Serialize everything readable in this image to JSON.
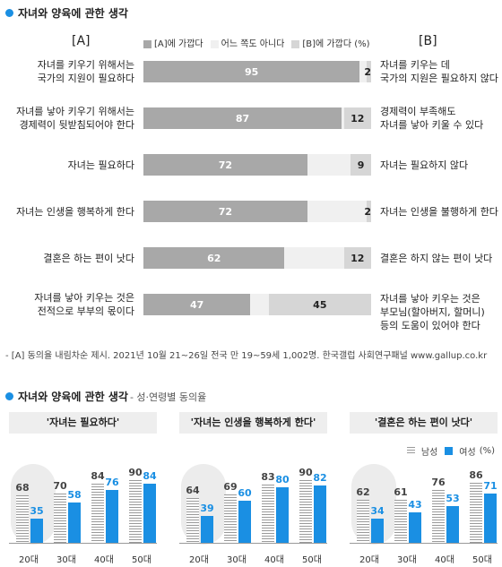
{
  "title1": "자녀와 양육에 관한 생각",
  "colA": "[A]",
  "colB": "[B]",
  "legend1": {
    "a": "[A]에 가깝다",
    "n": "어느 쪽도 아니다",
    "b": "[B]에 가깝다",
    "unit": "(%)"
  },
  "colors": {
    "a": "#a8a8a8",
    "n": "#f0f0f0",
    "b": "#d6d6d6",
    "male": "#9a9a9a",
    "female": "#1a8fe3",
    "accent": "#1a8fe3"
  },
  "rows": [
    {
      "a_text": [
        "자녀를 키우기 위해서는",
        "국가의 지원이 필요하다"
      ],
      "b_text": [
        "자녀를 키우는 데",
        "국가의 지원은 필요하지 않다"
      ],
      "a": 95,
      "n": 3,
      "b": 2,
      "a_label": "95",
      "b_label": "2"
    },
    {
      "a_text": [
        "자녀를 낳아 키우기 위해서는",
        "경제력이 뒷받침되어야 한다"
      ],
      "b_text": [
        "경제력이 부족해도",
        "자녀를 낳아 키울 수 있다"
      ],
      "a": 87,
      "n": 1,
      "b": 12,
      "a_label": "87",
      "b_label": "12"
    },
    {
      "a_text": [
        "자녀는 필요하다"
      ],
      "b_text": [
        "자녀는 필요하지 않다"
      ],
      "a": 72,
      "n": 19,
      "b": 9,
      "a_label": "72",
      "b_label": "9"
    },
    {
      "a_text": [
        "자녀는 인생을 행복하게 한다"
      ],
      "b_text": [
        "자녀는 인생을 불행하게 한다"
      ],
      "a": 72,
      "n": 26,
      "b": 2,
      "a_label": "72",
      "b_label": "2"
    },
    {
      "a_text": [
        "결혼은 하는 편이 낫다"
      ],
      "b_text": [
        "결혼은 하지 않는 편이 낫다"
      ],
      "a": 62,
      "n": 26,
      "b": 12,
      "a_label": "62",
      "b_label": "12"
    },
    {
      "a_text": [
        "자녀를 낳아 키우는 것은",
        "전적으로 부부의 몫이다"
      ],
      "b_text": [
        "자녀를 낳아 키우는 것은",
        "부모님(할아버지, 할머니)",
        "등의 도움이 있어야 한다"
      ],
      "a": 47,
      "n": 8,
      "b": 45,
      "a_label": "47",
      "b_label": "45"
    }
  ],
  "note": "- [A] 동의율 내림차순 제시. 2021년 10월 21~26일 전국 만 19~59세 1,002명. 한국갤럽 사회연구패널 www.gallup.co.kr",
  "title2": "자녀와 양육에 관한 생각",
  "title2_sub": "- 성·연령별 동의율",
  "legend2": {
    "male": "남성",
    "female": "여성",
    "unit": "(%)"
  },
  "chart_data": [
    {
      "type": "bar",
      "title": "'자녀는 필요하다'",
      "categories": [
        "20대",
        "30대",
        "40대",
        "50대"
      ],
      "series": [
        {
          "name": "남성",
          "values": [
            68,
            70,
            84,
            90
          ]
        },
        {
          "name": "여성",
          "values": [
            35,
            58,
            76,
            84
          ]
        }
      ],
      "ylim": [
        0,
        100
      ]
    },
    {
      "type": "bar",
      "title": "'자녀는 인생을 행복하게 한다'",
      "categories": [
        "20대",
        "30대",
        "40대",
        "50대"
      ],
      "series": [
        {
          "name": "남성",
          "values": [
            64,
            69,
            83,
            90
          ]
        },
        {
          "name": "여성",
          "values": [
            39,
            60,
            80,
            82
          ]
        }
      ],
      "ylim": [
        0,
        100
      ]
    },
    {
      "type": "bar",
      "title": "'결혼은 하는 편이 낫다'",
      "categories": [
        "20대",
        "30대",
        "40대",
        "50대"
      ],
      "series": [
        {
          "name": "남성",
          "values": [
            62,
            61,
            76,
            86
          ]
        },
        {
          "name": "여성",
          "values": [
            34,
            43,
            53,
            71
          ]
        }
      ],
      "ylim": [
        0,
        100
      ]
    }
  ]
}
